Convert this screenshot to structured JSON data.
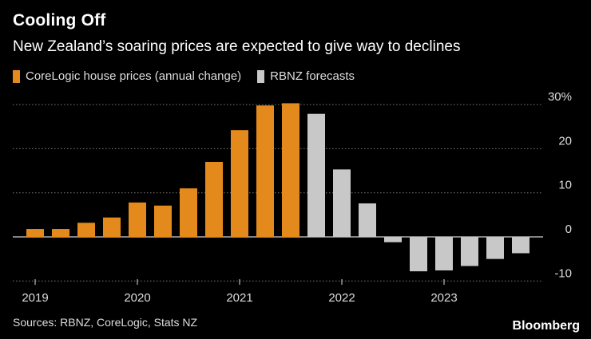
{
  "title": "Cooling Off",
  "subtitle": "New Zealand’s soaring prices are expected to give way to declines",
  "legend": [
    {
      "label": "CoreLogic house prices (annual change)",
      "color": "#e48a1c"
    },
    {
      "label": "RBNZ forecasts",
      "color": "#c8c8c8"
    }
  ],
  "source": "Sources: RBNZ, CoreLogic, Stats NZ",
  "brand": "Bloomberg",
  "chart_data": {
    "type": "bar",
    "title": "Cooling Off",
    "xlabel": "",
    "ylabel": "",
    "ylim": [
      -12,
      32
    ],
    "yticks": [
      30,
      20,
      10,
      0,
      -10
    ],
    "ytick_labels": [
      "30%",
      "20",
      "10",
      "0",
      "-10"
    ],
    "year_ticks": [
      {
        "label": "2019",
        "index": 0
      },
      {
        "label": "2020",
        "index": 4
      },
      {
        "label": "2021",
        "index": 8
      },
      {
        "label": "2022",
        "index": 12
      },
      {
        "label": "2023",
        "index": 16
      }
    ],
    "categories": [
      "2019 Q1",
      "2019 Q2",
      "2019 Q3",
      "2019 Q4",
      "2020 Q1",
      "2020 Q2",
      "2020 Q3",
      "2020 Q4",
      "2021 Q1",
      "2021 Q2",
      "2021 Q3",
      "2021 Q4",
      "2022 Q1",
      "2022 Q2",
      "2022 Q3",
      "2022 Q4",
      "2023 Q1",
      "2023 Q2",
      "2023 Q3",
      "2023 Q4"
    ],
    "series": [
      {
        "name": "CoreLogic house prices (annual change)",
        "color": "#e48a1c",
        "values": [
          1.8,
          1.8,
          3.2,
          4.4,
          7.8,
          7.1,
          11.0,
          17.0,
          24.2,
          29.8,
          30.3,
          null,
          null,
          null,
          null,
          null,
          null,
          null,
          null,
          null
        ]
      },
      {
        "name": "RBNZ forecasts",
        "color": "#c8c8c8",
        "values": [
          null,
          null,
          null,
          null,
          null,
          null,
          null,
          null,
          null,
          null,
          null,
          27.9,
          15.3,
          7.6,
          -1.2,
          -7.8,
          -7.6,
          -6.6,
          -5.0,
          -3.7
        ]
      }
    ]
  }
}
